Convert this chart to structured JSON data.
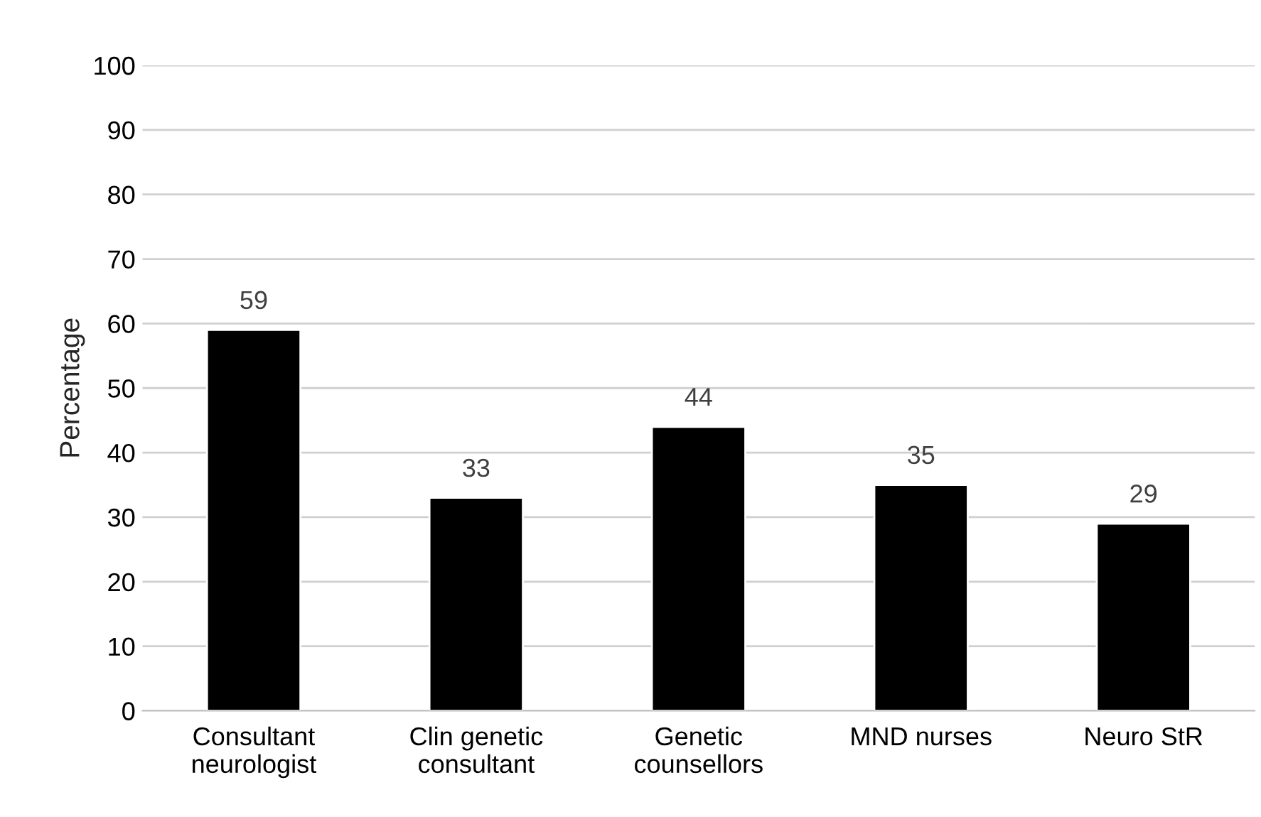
{
  "chart_data": {
    "type": "bar",
    "ylabel": "Percentage",
    "categories": [
      "Consultant\nneurologist",
      "Clin genetic\nconsultant",
      "Genetic\ncounsellors",
      "MND nurses",
      "Neuro StR"
    ],
    "values": [
      59,
      33,
      44,
      35,
      29
    ],
    "color": "#000000",
    "ylim": [
      0,
      100
    ],
    "yticks": [
      0,
      10,
      20,
      30,
      40,
      50,
      60,
      70,
      80,
      90,
      100
    ],
    "grid": "y",
    "data_labels": true
  }
}
